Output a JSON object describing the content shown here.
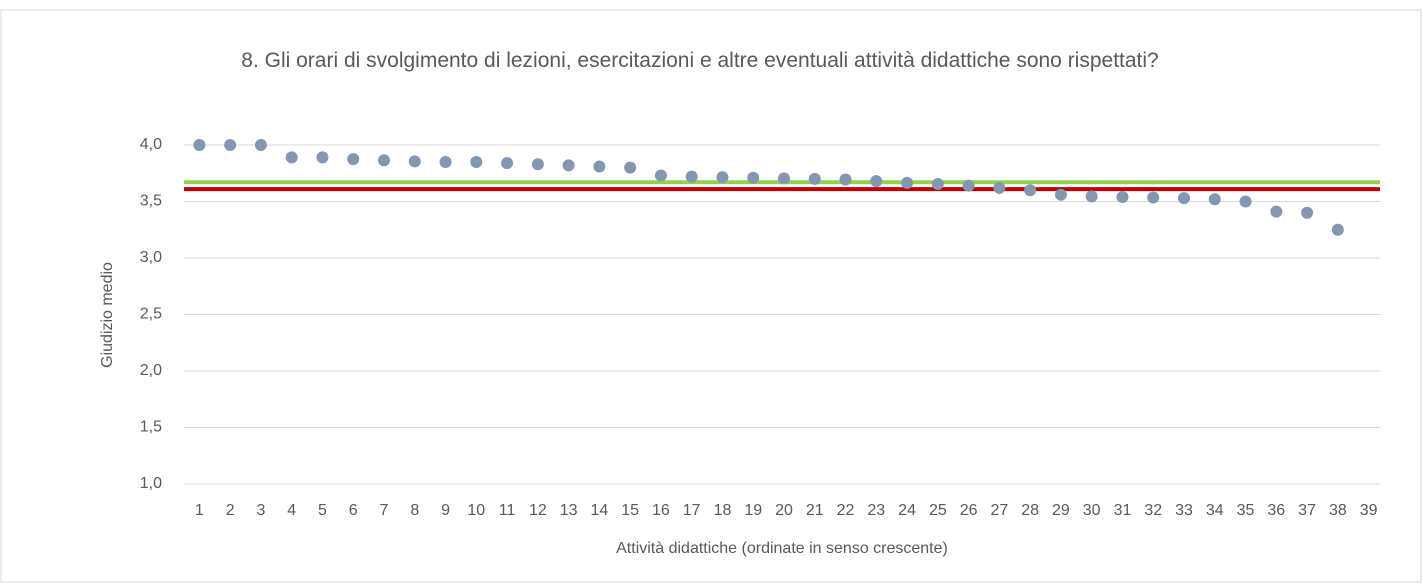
{
  "chart_data": {
    "type": "scatter",
    "title": "8. Gli orari di svolgimento di lezioni, esercitazioni e altre eventuali attività didattiche sono rispettati?",
    "x_label": "Attività didattiche (ordinate in senso crescente)",
    "y_label": "Giudizio medio",
    "categories": [
      "1",
      "2",
      "3",
      "4",
      "5",
      "6",
      "7",
      "8",
      "9",
      "10",
      "11",
      "12",
      "13",
      "14",
      "15",
      "16",
      "17",
      "18",
      "19",
      "20",
      "21",
      "22",
      "23",
      "24",
      "25",
      "26",
      "27",
      "28",
      "29",
      "30",
      "31",
      "32",
      "33",
      "34",
      "35",
      "36",
      "37",
      "38",
      "39"
    ],
    "values": [
      4.0,
      4.0,
      4.0,
      3.89,
      3.89,
      3.875,
      3.865,
      3.855,
      3.85,
      3.85,
      3.84,
      3.83,
      3.82,
      3.81,
      3.8,
      3.73,
      3.72,
      3.715,
      3.71,
      3.705,
      3.7,
      3.695,
      3.68,
      3.665,
      3.655,
      3.64,
      3.62,
      3.6,
      3.56,
      3.545,
      3.54,
      3.535,
      3.53,
      3.52,
      3.5,
      3.41,
      3.4,
      3.25,
      null
    ],
    "color": "#8497b0",
    "hlines": [
      {
        "value": 3.67,
        "color": "#92d050"
      },
      {
        "value": 3.61,
        "color": "#c00000"
      }
    ],
    "ylim": [
      1,
      4
    ],
    "yticks": [
      {
        "value": 1,
        "label": "1,0"
      },
      {
        "value": 1.5,
        "label": "1,5"
      },
      {
        "value": 2,
        "label": "2,0"
      },
      {
        "value": 2.5,
        "label": "2,5"
      },
      {
        "value": 3,
        "label": "3,0"
      },
      {
        "value": 3.5,
        "label": "3,5"
      },
      {
        "value": 4,
        "label": "4,0"
      }
    ],
    "grid": true
  }
}
